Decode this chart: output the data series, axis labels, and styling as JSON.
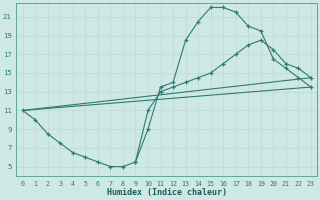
{
  "xlabel": "Humidex (Indice chaleur)",
  "bg_color": "#cde8e5",
  "grid_color": "#c0dbd8",
  "line_color": "#2d7b6e",
  "xlim": [
    -0.5,
    23.5
  ],
  "ylim": [
    4.0,
    22.5
  ],
  "xticks": [
    0,
    1,
    2,
    3,
    4,
    5,
    6,
    7,
    8,
    9,
    10,
    11,
    12,
    13,
    14,
    15,
    16,
    17,
    18,
    19,
    20,
    21,
    22,
    23
  ],
  "yticks": [
    5,
    7,
    9,
    11,
    13,
    15,
    17,
    19,
    21
  ],
  "line1_x": [
    0,
    1,
    2,
    3,
    4,
    5,
    6,
    7,
    8,
    9,
    10,
    11,
    12,
    13,
    14,
    15,
    16,
    17,
    18,
    19,
    20,
    21,
    22,
    23
  ],
  "line1_y": [
    11,
    10,
    8.5,
    7.5,
    6.5,
    6.0,
    5.5,
    5.0,
    5.0,
    5.5,
    9.0,
    13.5,
    14.0,
    18.5,
    20.5,
    22.0,
    22.0,
    21.5,
    20.0,
    19.5,
    16.5,
    15.5,
    14.5,
    13.5
  ],
  "line2_x": [
    9,
    10,
    11,
    12,
    13,
    14,
    15,
    16,
    17,
    18,
    19,
    20,
    21,
    22,
    23
  ],
  "line2_y": [
    5.5,
    11.0,
    13.0,
    13.5,
    14.0,
    14.5,
    15.0,
    16.0,
    17.0,
    18.0,
    18.5,
    17.5,
    16.0,
    15.5,
    14.5
  ],
  "line3_x": [
    0,
    23
  ],
  "line3_y": [
    11.0,
    13.5
  ],
  "line4_x": [
    0,
    23
  ],
  "line4_y": [
    11.0,
    14.5
  ]
}
